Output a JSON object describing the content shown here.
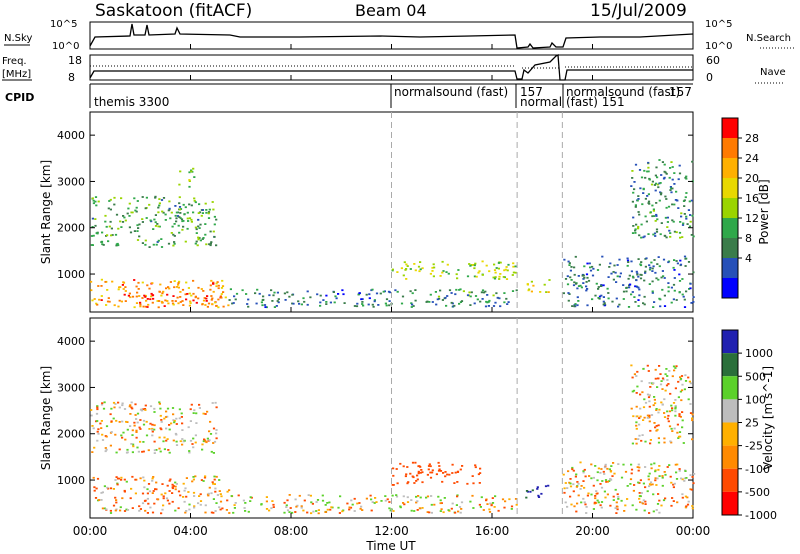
{
  "header": {
    "station": "Saskatoon (fitACF)",
    "beam": "Beam 04",
    "date": "15/Jul/2009"
  },
  "top_panels": {
    "nsky_label": "N.Sky",
    "nsearch_label": "N.Search",
    "noise_left_ticks": [
      "10^5",
      "10^0"
    ],
    "noise_right_ticks": [
      "10^5",
      "10^0"
    ],
    "freq_label_line1": "Freq.",
    "freq_label_line2": "[MHz]",
    "freq_ticks": [
      "18",
      "8"
    ],
    "nave_label": "Nave",
    "nave_ticks": [
      "60",
      "0"
    ],
    "cpid_label": "CPID",
    "cpid_segments": [
      {
        "label": "themis 3300",
        "start_hour": 0
      },
      {
        "label": "normalsound (fast)",
        "start_hour": 12
      },
      {
        "label": "157",
        "start_hour": 17
      },
      {
        "label": "normal",
        "start_hour": 17.05
      },
      {
        "label": "normalsound (fast)",
        "start_hour": 18.8
      },
      {
        "label": "157",
        "start_hour": 23.6
      },
      {
        "label": "(fast) 151",
        "start_hour": 17.8
      }
    ]
  },
  "x_axis": {
    "label": "Time UT",
    "ticks": [
      "00:00",
      "04:00",
      "08:00",
      "12:00",
      "16:00",
      "20:00",
      "00:00"
    ]
  },
  "y_axis": {
    "label": "Slant Range [km]",
    "ticks": [
      "4000",
      "3000",
      "2000",
      "1000"
    ]
  },
  "power_scale": {
    "label": "Power [dB]",
    "ticks": [
      "28",
      "24",
      "20",
      "16",
      "12",
      "8",
      "4"
    ],
    "colors": [
      "#ff0000",
      "#ff7a00",
      "#ffb000",
      "#e8d800",
      "#9ad400",
      "#2fa84a",
      "#3a7c4a",
      "#2650b8",
      "#0000ff"
    ]
  },
  "velocity_scale": {
    "label": "Velocity [m s^-1]",
    "ticks": [
      "1000",
      "500",
      "100",
      "25",
      "-25",
      "-100",
      "-500",
      "-1000"
    ],
    "colors": [
      "#2020b0",
      "#2a6f3a",
      "#5bd12a",
      "#bdbdbd",
      "#ffb000",
      "#ff8a00",
      "#ff4a00",
      "#ff0000"
    ]
  },
  "chart_data": [
    {
      "type": "heatmap",
      "title": "Power",
      "x_range_hours": [
        0,
        24
      ],
      "y_range_km": [
        180,
        4500
      ],
      "x_ticks": [
        "00:00",
        "04:00",
        "08:00",
        "12:00",
        "16:00",
        "20:00",
        "00:00"
      ],
      "y_ticks": [
        1000,
        2000,
        3000,
        4000
      ],
      "colorbar": {
        "label": "Power [dB]",
        "ticks": [
          4,
          8,
          12,
          16,
          20,
          24,
          28
        ]
      },
      "regions": [
        {
          "t": [
            0.0,
            5.5
          ],
          "r": [
            300,
            900
          ],
          "value_db": 24
        },
        {
          "t": [
            1.5,
            5.3
          ],
          "r": [
            300,
            600
          ],
          "value_db": 28
        },
        {
          "t": [
            0.0,
            5.0
          ],
          "r": [
            1600,
            2700
          ],
          "value_db": 12
        },
        {
          "t": [
            3.5,
            4.2
          ],
          "r": [
            2900,
            3300
          ],
          "value_db": 16
        },
        {
          "t": [
            5.5,
            12.0
          ],
          "r": [
            300,
            700
          ],
          "value_db": 8
        },
        {
          "t": [
            12.0,
            17.0
          ],
          "r": [
            900,
            1300
          ],
          "value_db": 16
        },
        {
          "t": [
            12.0,
            17.0
          ],
          "r": [
            300,
            700
          ],
          "value_db": 10
        },
        {
          "t": [
            17.3,
            18.3
          ],
          "r": [
            600,
            900
          ],
          "value_db": 20
        },
        {
          "t": [
            18.8,
            24.0
          ],
          "r": [
            300,
            1400
          ],
          "value_db": 8
        },
        {
          "t": [
            21.5,
            24.0
          ],
          "r": [
            1800,
            3500
          ],
          "value_db": 10
        }
      ]
    },
    {
      "type": "heatmap",
      "title": "Velocity",
      "x_range_hours": [
        0,
        24
      ],
      "y_range_km": [
        180,
        4500
      ],
      "x_ticks": [
        "00:00",
        "04:00",
        "08:00",
        "12:00",
        "16:00",
        "20:00",
        "00:00"
      ],
      "y_ticks": [
        1000,
        2000,
        3000,
        4000
      ],
      "colorbar": {
        "label": "Velocity [m s^-1]",
        "ticks": [
          -1000,
          -500,
          -100,
          -25,
          25,
          100,
          500,
          1000
        ]
      },
      "regions": [
        {
          "t": [
            0.0,
            5.5
          ],
          "r": [
            300,
            1100
          ],
          "value_ms": -60
        },
        {
          "t": [
            0.0,
            5.0
          ],
          "r": [
            1600,
            2700
          ],
          "value_ms": 0
        },
        {
          "t": [
            5.5,
            12.0
          ],
          "r": [
            300,
            700
          ],
          "value_ms": 0
        },
        {
          "t": [
            12.0,
            15.5
          ],
          "r": [
            900,
            1400
          ],
          "value_ms": -300
        },
        {
          "t": [
            12.0,
            17.0
          ],
          "r": [
            300,
            700
          ],
          "value_ms": 0
        },
        {
          "t": [
            17.3,
            18.3
          ],
          "r": [
            600,
            900
          ],
          "value_ms": 1000
        },
        {
          "t": [
            18.8,
            24.0
          ],
          "r": [
            300,
            1400
          ],
          "value_ms": 0
        },
        {
          "t": [
            21.5,
            24.0
          ],
          "r": [
            1800,
            3500
          ],
          "value_ms": 0
        }
      ]
    }
  ]
}
